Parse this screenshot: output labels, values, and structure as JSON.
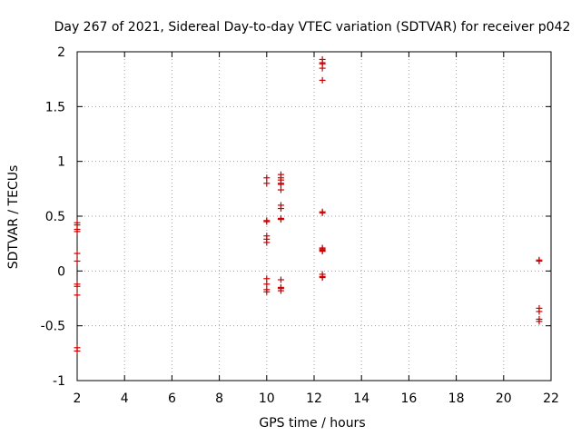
{
  "chart_data": {
    "type": "scatter",
    "title": "Day 267 of 2021, Sidereal Day-to-day VTEC variation (SDTVAR) for receiver p042",
    "xlabel": "GPS time / hours",
    "ylabel": "SDTVAR / TECUs",
    "xlim": [
      2,
      22
    ],
    "ylim": [
      -1,
      2
    ],
    "xticks": [
      2,
      4,
      6,
      8,
      10,
      12,
      14,
      16,
      18,
      20,
      22
    ],
    "xtick_labels": [
      "2",
      "4",
      "6",
      "8",
      "10",
      "12",
      "14",
      "16",
      "18",
      "20",
      "22"
    ],
    "yticks": [
      -1,
      -0.5,
      0,
      0.5,
      1,
      1.5,
      2
    ],
    "ytick_labels": [
      "-1",
      "-0.5",
      "0",
      "0.5",
      "1",
      "1.5",
      "2"
    ],
    "grid": true,
    "marker": "plus",
    "marker_color": "#cc0000",
    "series": [
      {
        "name": "SDTVAR",
        "x": [
          2.0,
          2.0,
          2.0,
          2.0,
          2.0,
          2.0,
          2.0,
          2.0,
          2.0,
          2.0,
          2.0,
          10.0,
          10.0,
          10.0,
          10.0,
          10.0,
          10.0,
          10.0,
          10.0,
          10.0,
          10.0,
          10.0,
          10.6,
          10.6,
          10.6,
          10.6,
          10.6,
          10.6,
          10.6,
          10.6,
          10.6,
          10.6,
          10.6,
          10.6,
          10.6,
          10.6,
          12.35,
          12.35,
          12.35,
          12.35,
          12.35,
          12.35,
          12.35,
          12.35,
          12.35,
          12.35,
          12.35,
          12.35,
          12.35,
          12.35,
          21.5,
          21.5,
          21.5,
          21.5,
          21.5,
          21.5
        ],
        "y": [
          0.44,
          0.42,
          0.38,
          0.36,
          0.16,
          0.09,
          -0.12,
          -0.14,
          -0.22,
          -0.7,
          -0.73,
          0.85,
          0.8,
          0.46,
          0.45,
          0.32,
          0.29,
          0.26,
          -0.07,
          -0.12,
          -0.17,
          -0.19,
          0.88,
          0.85,
          0.83,
          0.8,
          0.79,
          0.74,
          0.6,
          0.57,
          0.48,
          0.47,
          -0.08,
          -0.15,
          -0.16,
          -0.18,
          1.93,
          1.9,
          1.89,
          1.85,
          1.74,
          0.54,
          0.53,
          0.21,
          0.2,
          0.19,
          0.18,
          -0.03,
          -0.05,
          -0.06,
          0.1,
          0.09,
          -0.34,
          -0.37,
          -0.44,
          -0.46
        ]
      }
    ]
  }
}
